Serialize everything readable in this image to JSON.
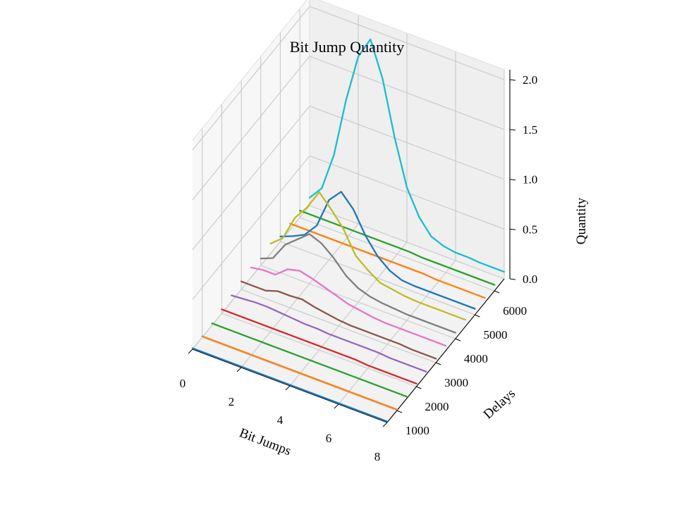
{
  "chart_data": {
    "type": "line",
    "projection": "3d",
    "title": "Bit Jump Quantity",
    "xlabel": "Bit Jumps",
    "ylabel": "Delays",
    "zlabel": "Quantity",
    "xlim": [
      0,
      8
    ],
    "ylim": [
      500,
      6500
    ],
    "zlim": [
      0,
      2.1
    ],
    "xticks": [
      "0",
      "2",
      "4",
      "6",
      "8"
    ],
    "yticks": [
      "1000",
      "2000",
      "3000",
      "4000",
      "5000",
      "6000"
    ],
    "zticks": [
      "0.0",
      "0.5",
      "1.0",
      "1.5",
      "2.0"
    ],
    "x": [
      0,
      0.5,
      1,
      1.5,
      2,
      2.5,
      3,
      3.5,
      4,
      4.5,
      5,
      5.5,
      6,
      6.5,
      7,
      7.5,
      8
    ],
    "grid": true,
    "series": [
      {
        "delay": 500,
        "color": "#1f77b4",
        "values": [
          0.01,
          0.01,
          0.01,
          0.01,
          0.01,
          0.01,
          0.01,
          0.01,
          0.01,
          0.01,
          0.01,
          0.01,
          0.01,
          0.01,
          0.01,
          0.01,
          0.01
        ]
      },
      {
        "delay": 1000,
        "color": "#ff7f0e",
        "values": [
          0.01,
          0.01,
          0.01,
          0.01,
          0.01,
          0.01,
          0.01,
          0.01,
          0.01,
          0.01,
          0.01,
          0.01,
          0.01,
          0.01,
          0.01,
          0.01,
          0.01
        ]
      },
      {
        "delay": 1500,
        "color": "#2ca02c",
        "values": [
          0.02,
          0.02,
          0.02,
          0.02,
          0.02,
          0.02,
          0.02,
          0.02,
          0.02,
          0.02,
          0.02,
          0.02,
          0.02,
          0.02,
          0.02,
          0.02,
          0.02
        ]
      },
      {
        "delay": 2000,
        "color": "#d62728",
        "values": [
          0.04,
          0.04,
          0.04,
          0.04,
          0.04,
          0.04,
          0.04,
          0.04,
          0.04,
          0.04,
          0.04,
          0.04,
          0.03,
          0.03,
          0.03,
          0.03,
          0.03
        ]
      },
      {
        "delay": 2500,
        "color": "#9467bd",
        "values": [
          0.06,
          0.07,
          0.08,
          0.08,
          0.07,
          0.06,
          0.05,
          0.05,
          0.04,
          0.04,
          0.04,
          0.04,
          0.04,
          0.03,
          0.03,
          0.03,
          0.03
        ]
      },
      {
        "delay": 3000,
        "color": "#8c564b",
        "values": [
          0.08,
          0.08,
          0.08,
          0.12,
          0.12,
          0.13,
          0.1,
          0.08,
          0.06,
          0.05,
          0.05,
          0.05,
          0.05,
          0.05,
          0.04,
          0.04,
          0.04
        ]
      },
      {
        "delay": 3500,
        "color": "#e377c2",
        "values": [
          0.1,
          0.12,
          0.12,
          0.22,
          0.25,
          0.22,
          0.18,
          0.14,
          0.1,
          0.08,
          0.06,
          0.05,
          0.05,
          0.05,
          0.05,
          0.05,
          0.05
        ]
      },
      {
        "delay": 4000,
        "color": "#7f7f7f",
        "values": [
          0.07,
          0.12,
          0.3,
          0.4,
          0.5,
          0.45,
          0.35,
          0.22,
          0.14,
          0.1,
          0.08,
          0.07,
          0.06,
          0.06,
          0.06,
          0.06,
          0.06
        ]
      },
      {
        "delay": 4500,
        "color": "#bcbd22",
        "values": [
          0.1,
          0.2,
          0.45,
          0.6,
          0.8,
          0.67,
          0.52,
          0.3,
          0.2,
          0.12,
          0.1,
          0.08,
          0.07,
          0.07,
          0.07,
          0.07,
          0.07
        ]
      },
      {
        "delay": 5000,
        "color": "#1f77b4",
        "values": [
          0.05,
          0.1,
          0.16,
          0.3,
          0.6,
          0.73,
          0.6,
          0.38,
          0.22,
          0.12,
          0.07,
          0.06,
          0.06,
          0.06,
          0.06,
          0.06,
          0.06
        ]
      },
      {
        "delay": 5500,
        "color": "#ff7f0e",
        "values": [
          0.06,
          0.06,
          0.06,
          0.06,
          0.06,
          0.06,
          0.06,
          0.06,
          0.06,
          0.06,
          0.06,
          0.06,
          0.05,
          0.05,
          0.05,
          0.05,
          0.05
        ]
      },
      {
        "delay": 6000,
        "color": "#2ca02c",
        "values": [
          0.07,
          0.07,
          0.07,
          0.07,
          0.07,
          0.07,
          0.07,
          0.07,
          0.07,
          0.07,
          0.06,
          0.06,
          0.06,
          0.06,
          0.06,
          0.06,
          0.06
        ]
      },
      {
        "delay": 6500,
        "color": "#17becf",
        "values": [
          0.08,
          0.22,
          0.6,
          1.2,
          1.68,
          1.9,
          1.55,
          1.0,
          0.55,
          0.3,
          0.15,
          0.1,
          0.08,
          0.08,
          0.07,
          0.07,
          0.07
        ]
      }
    ]
  }
}
